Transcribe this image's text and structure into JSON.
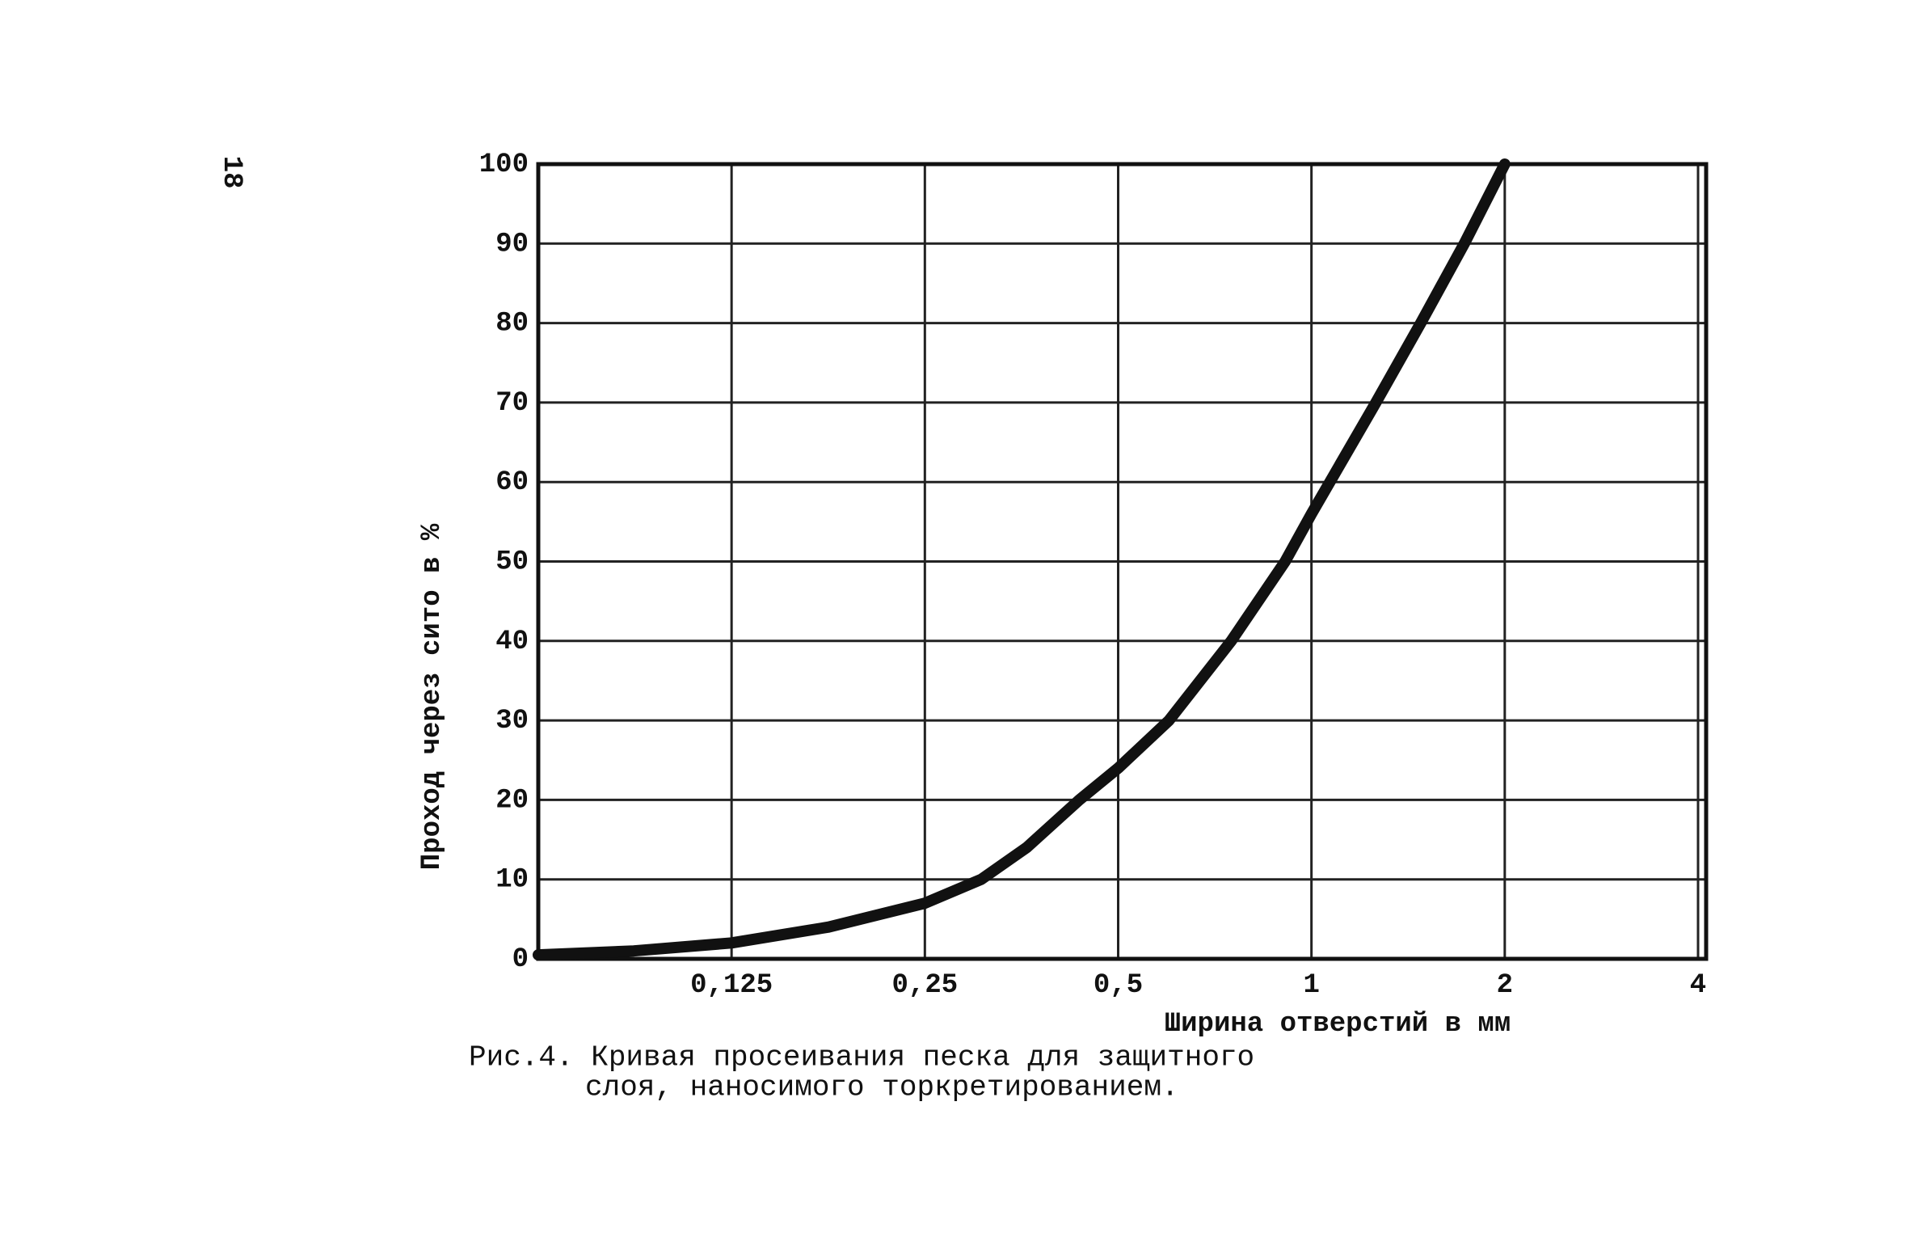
{
  "page_number": "18",
  "caption": [
    "Рис.4. Кривая просеивания песка для защитного",
    "слоя, наносимого торкретированием."
  ],
  "chart_data": {
    "type": "line",
    "x_label": "Ширина отверстий в мм",
    "y_label": "Проход через сито в %",
    "x_scale": "log",
    "grid": true,
    "x": [
      0.0625,
      0.088,
      0.125,
      0.177,
      0.25,
      0.306,
      0.36,
      0.435,
      0.5,
      0.6,
      0.75,
      0.91,
      1,
      1.26,
      1.48,
      1.73,
      2
    ],
    "series": [
      {
        "color": "#111111",
        "values": [
          0.5,
          1,
          2,
          4,
          7,
          10,
          14,
          20,
          24,
          30,
          40,
          50,
          56,
          70,
          80,
          90,
          100
        ]
      }
    ],
    "xlim": [
      0.0625,
      4
    ],
    "xticks": [
      {
        "value": 0.125,
        "label": "0,125"
      },
      {
        "value": 0.25,
        "label": "0,25"
      },
      {
        "value": 0.5,
        "label": "0,5"
      },
      1,
      2,
      4
    ],
    "ylim": [
      0,
      100
    ],
    "yticks": [
      0,
      10,
      20,
      30,
      40,
      50,
      60,
      70,
      80,
      90,
      100
    ]
  }
}
